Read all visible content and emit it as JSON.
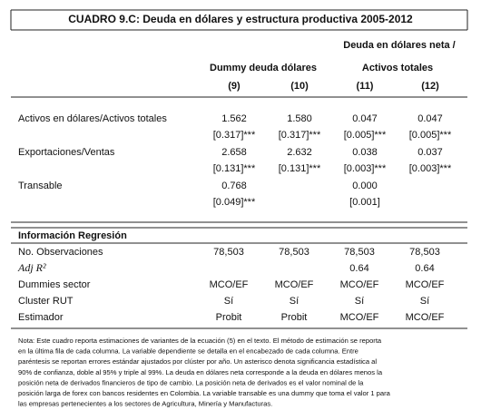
{
  "title": "CUADRO 9.C: Deuda en dólares y estructura productiva 2005-2012",
  "header": {
    "group1": "Dummy deuda dólares",
    "group2_line1": "Deuda en dólares neta /",
    "group2_line2": "Activos totales",
    "columns": [
      "(9)",
      "(10)",
      "(11)",
      "(12)"
    ]
  },
  "rows": [
    {
      "label": "Activos en dólares/Activos totales",
      "values": [
        "1.562",
        "1.580",
        "0.047",
        "0.047"
      ],
      "errors": [
        "[0.317]***",
        "[0.317]***",
        "[0.005]***",
        "[0.005]***"
      ]
    },
    {
      "label": "Exportaciones/Ventas",
      "values": [
        "2.658",
        "2.632",
        "0.038",
        "0.037"
      ],
      "errors": [
        "[0.131]***",
        "[0.131]***",
        "[0.003]***",
        "[0.003]***"
      ]
    },
    {
      "label": "Transable",
      "values": [
        "0.768",
        null,
        "0.000",
        null
      ],
      "errors": [
        "[0.049]***",
        null,
        "[0.001]",
        null
      ]
    }
  ],
  "section": "Información Regresión",
  "regression_rows": [
    {
      "label": "No. Observaciones",
      "values": [
        "78,503",
        "78,503",
        "78,503",
        "78,503"
      ]
    },
    {
      "label": "Adj R²",
      "values": [
        null,
        null,
        "0.64",
        "0.64"
      ]
    },
    {
      "label": "Dummies sector",
      "values": [
        "MCO/EF",
        "MCO/EF",
        "MCO/EF",
        "MCO/EF"
      ]
    },
    {
      "label": "Cluster RUT",
      "values": [
        "Sí",
        "Sí",
        "Sí",
        "Sí"
      ]
    },
    {
      "label": "Estimador",
      "values": [
        "Probit",
        "Probit",
        "MCO/EF",
        "MCO/EF"
      ]
    }
  ],
  "note": [
    "Nota: Este cuadro reporta estimaciones de variantes de la ecuación (5) en el texto. El método de estimación se reporta",
    "en la última fila de cada columna. La variable dependiente se detalla en el encabezado de cada columna. Entre",
    "paréntesis se reportan errores estándar ajustados por clúster por año. Un asterisco denota significancia estadística al",
    "90% de confianza, doble al 95% y triple al 99%. La deuda en dólares neta corresponde a la deuda en dólares  menos la",
    "posición neta de derivados financieros de tipo de cambio.  La posición neta de derivados es el valor nominal de la",
    "posición larga de forex con bancos residentes en Colombia. La variable transable es una dummy que toma el valor 1 para",
    "las empresas pertenecientes a los sectores de Agricultura, Minería y Manufacturas."
  ]
}
